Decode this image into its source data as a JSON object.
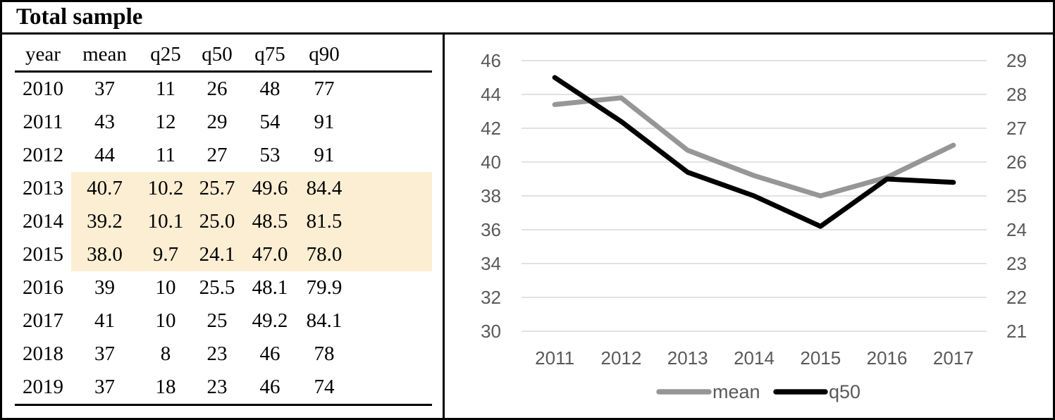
{
  "panel_title": "Total sample",
  "table": {
    "columns": [
      "year",
      "mean",
      "q25",
      "q50",
      "q75",
      "q90"
    ],
    "rows": [
      {
        "cells": [
          "2010",
          "37",
          "11",
          "26",
          "48",
          "77"
        ],
        "highlighted": false
      },
      {
        "cells": [
          "2011",
          "43",
          "12",
          "29",
          "54",
          "91"
        ],
        "highlighted": false
      },
      {
        "cells": [
          "2012",
          "44",
          "11",
          "27",
          "53",
          "91"
        ],
        "highlighted": false
      },
      {
        "cells": [
          "2013",
          "40.7",
          "10.2",
          "25.7",
          "49.6",
          "84.4"
        ],
        "highlighted": true
      },
      {
        "cells": [
          "2014",
          "39.2",
          "10.1",
          "25.0",
          "48.5",
          "81.5"
        ],
        "highlighted": true
      },
      {
        "cells": [
          "2015",
          "38.0",
          "9.7",
          "24.1",
          "47.0",
          "78.0"
        ],
        "highlighted": true
      },
      {
        "cells": [
          "2016",
          "39",
          "10",
          "25.5",
          "48.1",
          "79.9"
        ],
        "highlighted": false
      },
      {
        "cells": [
          "2017",
          "41",
          "10",
          "25",
          "49.2",
          "84.1"
        ],
        "highlighted": false
      },
      {
        "cells": [
          "2018",
          "37",
          "8",
          "23",
          "46",
          "78"
        ],
        "highlighted": false
      },
      {
        "cells": [
          "2019",
          "37",
          "18",
          "23",
          "46",
          "74"
        ],
        "highlighted": false
      }
    ],
    "highlight_color": "#FCEED3"
  },
  "chart_data": {
    "type": "line",
    "x": [
      "2011",
      "2012",
      "2013",
      "2014",
      "2015",
      "2016",
      "2017"
    ],
    "series": [
      {
        "name": "mean",
        "axis": "left",
        "color": "#969696",
        "values": [
          43.4,
          43.8,
          40.7,
          39.2,
          38.0,
          39.1,
          41.0
        ]
      },
      {
        "name": "q50",
        "axis": "right",
        "color": "#000000",
        "values": [
          28.5,
          27.2,
          25.7,
          25.0,
          24.1,
          25.5,
          25.4
        ]
      }
    ],
    "left_axis": {
      "min": 30,
      "max": 46,
      "step": 2,
      "ticks": [
        "46",
        "44",
        "42",
        "40",
        "38",
        "36",
        "34",
        "32",
        "30"
      ]
    },
    "right_axis": {
      "min": 21,
      "max": 29,
      "step": 1,
      "ticks": [
        "29",
        "28",
        "27",
        "26",
        "25",
        "24",
        "23",
        "22",
        "21"
      ]
    },
    "grid": true,
    "gridline_color": "#D9D9D9",
    "label_color": "#595959",
    "legend_position": "bottom",
    "legend": [
      "mean",
      "q50"
    ]
  }
}
